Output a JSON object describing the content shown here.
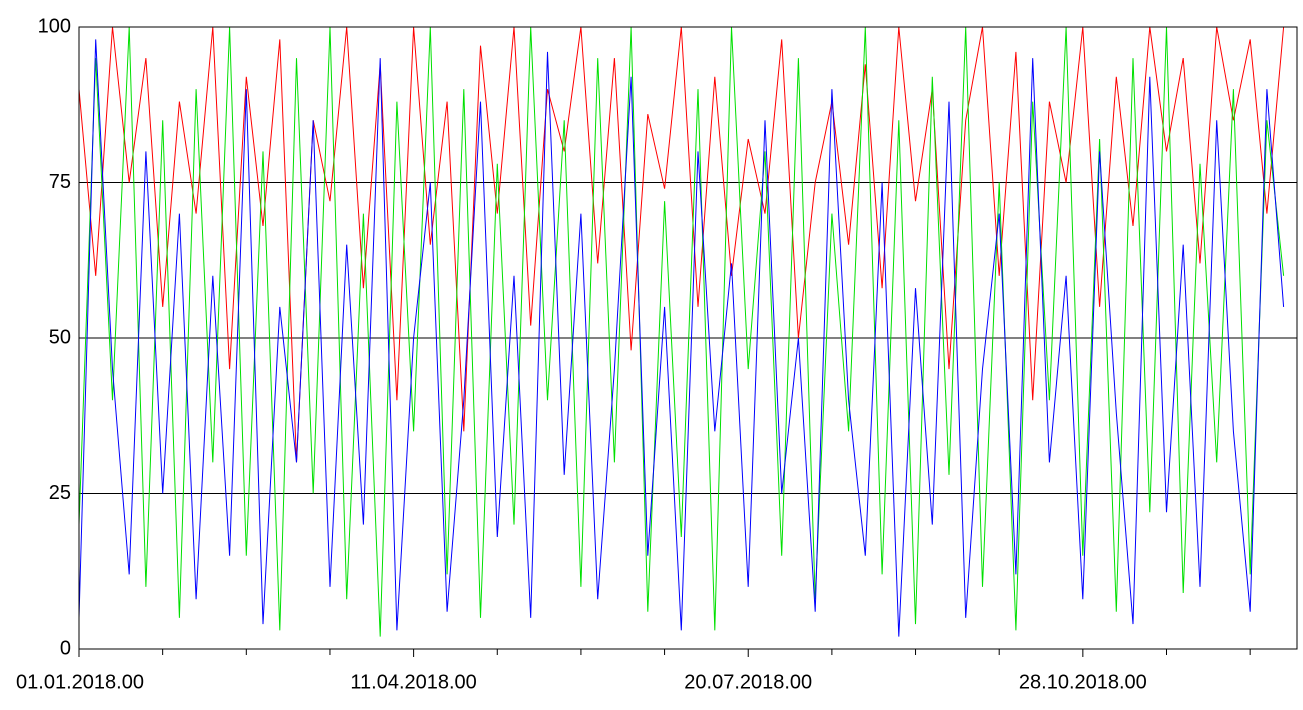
{
  "chart_data": {
    "type": "line",
    "x": [
      "01.01.2018.00",
      "06.01.2018.00",
      "11.01.2018.00",
      "16.01.2018.00",
      "21.01.2018.00",
      "26.01.2018.00",
      "31.01.2018.00",
      "05.02.2018.00",
      "10.02.2018.00",
      "15.02.2018.00",
      "20.02.2018.00",
      "25.02.2018.00",
      "02.03.2018.00",
      "07.03.2018.00",
      "12.03.2018.00",
      "17.03.2018.00",
      "22.03.2018.00",
      "27.03.2018.00",
      "01.04.2018.00",
      "06.04.2018.00",
      "11.04.2018.00",
      "16.04.2018.00",
      "21.04.2018.00",
      "26.04.2018.00",
      "01.05.2018.00",
      "06.05.2018.00",
      "11.05.2018.00",
      "16.05.2018.00",
      "21.05.2018.00",
      "26.05.2018.00",
      "31.05.2018.00",
      "05.06.2018.00",
      "10.06.2018.00",
      "15.06.2018.00",
      "20.06.2018.00",
      "25.06.2018.00",
      "30.06.2018.00",
      "05.07.2018.00",
      "10.07.2018.00",
      "15.07.2018.00",
      "20.07.2018.00",
      "25.07.2018.00",
      "30.07.2018.00",
      "04.08.2018.00",
      "09.08.2018.00",
      "14.08.2018.00",
      "19.08.2018.00",
      "24.08.2018.00",
      "29.08.2018.00",
      "03.09.2018.00",
      "08.09.2018.00",
      "13.09.2018.00",
      "18.09.2018.00",
      "23.09.2018.00",
      "28.09.2018.00",
      "03.10.2018.00",
      "08.10.2018.00",
      "13.10.2018.00",
      "18.10.2018.00",
      "23.10.2018.00",
      "28.10.2018.00",
      "02.11.2018.00",
      "07.11.2018.00",
      "12.11.2018.00",
      "17.11.2018.00",
      "22.11.2018.00",
      "27.11.2018.00",
      "02.12.2018.00",
      "07.12.2018.00",
      "12.12.2018.00",
      "17.12.2018.00",
      "22.12.2018.00",
      "27.12.2018.00"
    ],
    "series": [
      {
        "color": "#ff0000",
        "values": [
          90,
          60,
          100,
          75,
          95,
          55,
          88,
          70,
          100,
          45,
          92,
          68,
          98,
          30,
          85,
          72,
          100,
          58,
          94,
          40,
          100,
          65,
          88,
          35,
          97,
          70,
          100,
          52,
          90,
          80,
          100,
          62,
          95,
          48,
          86,
          74,
          100,
          55,
          92,
          60,
          82,
          70,
          98,
          50,
          75,
          88,
          65,
          94,
          58,
          100,
          72,
          90,
          45,
          85,
          100,
          60,
          96,
          40,
          88,
          75,
          100,
          55,
          92,
          68,
          100,
          80,
          95,
          62,
          100,
          85,
          98,
          70,
          100
        ]
      },
      {
        "color": "#00e000",
        "values": [
          20,
          95,
          40,
          100,
          10,
          85,
          5,
          90,
          30,
          100,
          15,
          80,
          3,
          95,
          25,
          100,
          8,
          70,
          2,
          88,
          35,
          100,
          12,
          90,
          5,
          78,
          20,
          100,
          40,
          85,
          10,
          95,
          30,
          100,
          6,
          72,
          18,
          90,
          3,
          100,
          45,
          80,
          15,
          95,
          8,
          70,
          35,
          100,
          12,
          85,
          4,
          92,
          28,
          100,
          10,
          75,
          3,
          88,
          40,
          100,
          15,
          82,
          6,
          95,
          22,
          100,
          9,
          78,
          30,
          90,
          12,
          85,
          60
        ]
      },
      {
        "color": "#0000ff",
        "values": [
          5,
          98,
          45,
          12,
          80,
          25,
          70,
          8,
          60,
          15,
          90,
          4,
          55,
          30,
          85,
          10,
          65,
          20,
          95,
          3,
          50,
          75,
          6,
          40,
          88,
          18,
          60,
          5,
          96,
          28,
          70,
          8,
          45,
          92,
          15,
          55,
          3,
          80,
          35,
          62,
          10,
          85,
          25,
          50,
          6,
          90,
          40,
          15,
          75,
          2,
          58,
          20,
          88,
          5,
          45,
          70,
          12,
          95,
          30,
          60,
          8,
          80,
          38,
          4,
          92,
          22,
          65,
          10,
          85,
          35,
          6,
          90,
          55
        ]
      }
    ],
    "xlim": [
      "01.01.2018.00",
      "31.12.2018.00"
    ],
    "xticks": [
      "01.01.2018.00",
      "11.04.2018.00",
      "20.07.2018.00",
      "28.10.2018.00"
    ],
    "ylim": [
      0,
      100
    ],
    "yticks": [
      0,
      25,
      50,
      75,
      100
    ],
    "grid": true
  }
}
